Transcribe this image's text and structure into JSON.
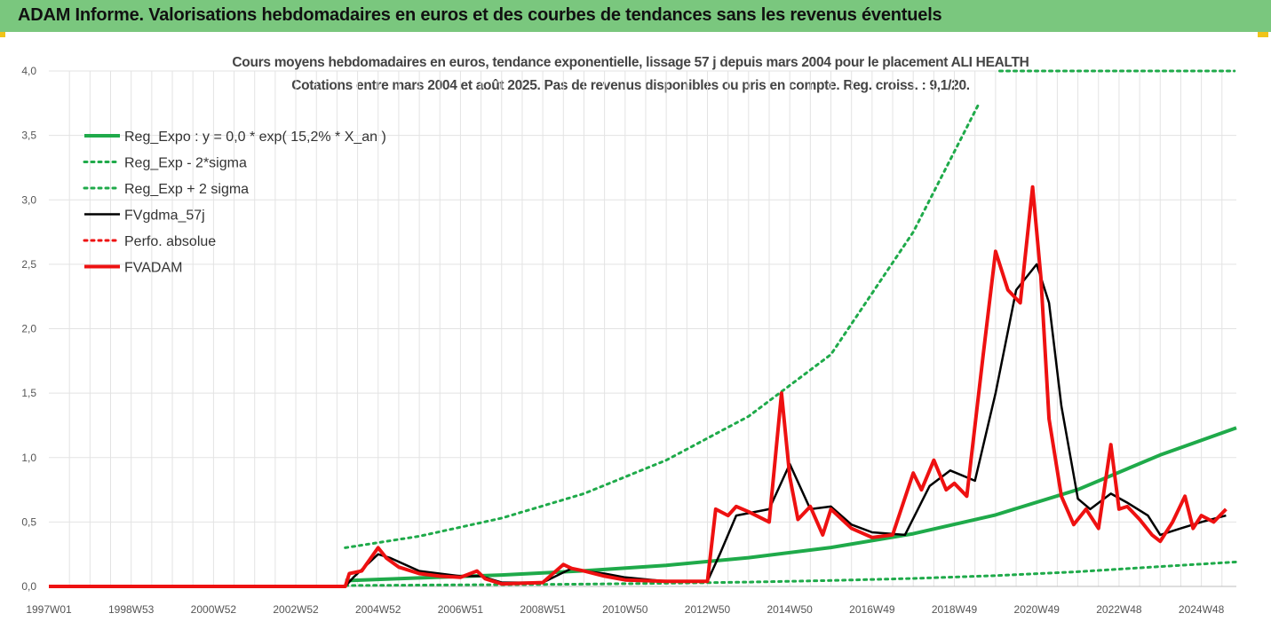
{
  "banner": {
    "title": "ADAM Informe. Valorisations hebdomadaires en euros et des courbes de tendances sans les revenus éventuels"
  },
  "colors": {
    "banner_bg": "#7ac77e",
    "accent_corner": "#f0c419",
    "reg_expo": "#1faa4a",
    "fvgdma": "#000000",
    "fvadam": "#ee1111",
    "grid": "#e3e3e3"
  },
  "chart_data": {
    "type": "line",
    "title": "Cours moyens hebdomadaires en euros, tendance exponentielle, lissage 57 j depuis mars 2004 pour le placement ALI HEALTH",
    "subtitle": "Cotations entre mars 2004 et août 2025.  Pas de revenus disponibles ou pris en compte. Reg. croiss. : 9,1/20.",
    "xlabel": "",
    "ylabel": "",
    "ylim": [
      0,
      4
    ],
    "yticks": [
      "0,0",
      "0,5",
      "1,0",
      "1,5",
      "2,0",
      "2,5",
      "3,0",
      "3,5",
      "4,0"
    ],
    "yvalues": [
      0,
      0.5,
      1,
      1.5,
      2,
      2.5,
      3,
      3.5,
      4
    ],
    "xticks": [
      "1997W01",
      "1998W53",
      "2000W52",
      "2002W52",
      "2004W52",
      "2006W51",
      "2008W51",
      "2010W50",
      "2012W50",
      "2014W50",
      "2016W49",
      "2018W49",
      "2020W49",
      "2022W48",
      "2024W48"
    ],
    "xtick_years": [
      1997.0,
      1999.0,
      2001.0,
      2003.0,
      2005.0,
      2007.0,
      2009.0,
      2011.0,
      2013.0,
      2015.0,
      2017.0,
      2019.0,
      2021.0,
      2023.0,
      2025.0
    ],
    "xlim": [
      1997.0,
      2025.85
    ],
    "grid": true,
    "legend_position": "top-left",
    "series": [
      {
        "name": "Reg_Expo : y = 0,0 * exp( 15,2% *  X_an )",
        "style": "solid-thick",
        "color": "#1faa4a",
        "x": [
          2004.2,
          2006,
          2008,
          2010,
          2012,
          2014,
          2016,
          2018,
          2020,
          2022,
          2024,
          2025.85
        ],
        "y": [
          0.045,
          0.066,
          0.089,
          0.121,
          0.164,
          0.223,
          0.302,
          0.409,
          0.555,
          0.752,
          1.02,
          1.23
        ]
      },
      {
        "name": "Reg_Exp - 2*sigma",
        "style": "dotted",
        "color": "#1faa4a",
        "x": [
          2004.2,
          2006,
          2008,
          2010,
          2012,
          2014,
          2016,
          2018,
          2020,
          2022,
          2024,
          2025.85
        ],
        "y": [
          0.007,
          0.01,
          0.014,
          0.018,
          0.025,
          0.034,
          0.046,
          0.062,
          0.084,
          0.114,
          0.154,
          0.19
        ]
      },
      {
        "name": "Reg_Exp + 2 sigma",
        "style": "dotted",
        "color": "#1faa4a",
        "x": [
          2004.2,
          2006,
          2008,
          2010,
          2012,
          2014,
          2016,
          2018,
          2019.6
        ],
        "y": [
          0.3,
          0.39,
          0.53,
          0.72,
          0.98,
          1.32,
          1.8,
          2.75,
          3.75
        ]
      },
      {
        "name": "FVgdma_57j",
        "style": "solid",
        "color": "#000000",
        "x": [
          1997,
          2004.2,
          2004.4,
          2005.0,
          2005.3,
          2006.0,
          2007.0,
          2007.5,
          2008.0,
          2009.0,
          2009.7,
          2010.0,
          2010.5,
          2011.0,
          2012.0,
          2013.0,
          2013.3,
          2013.7,
          2014.5,
          2015.0,
          2015.5,
          2016.0,
          2016.5,
          2017.0,
          2017.8,
          2018.4,
          2018.9,
          2019.5,
          2020.0,
          2020.5,
          2021.0,
          2021.3,
          2021.6,
          2022.0,
          2022.3,
          2022.8,
          2023.2,
          2023.7,
          2024.0,
          2024.5,
          2025.0,
          2025.6
        ],
        "y": [
          0,
          0,
          0.07,
          0.25,
          0.22,
          0.12,
          0.08,
          0.08,
          0.03,
          0.03,
          0.14,
          0.12,
          0.1,
          0.07,
          0.04,
          0.04,
          0.25,
          0.55,
          0.6,
          0.95,
          0.6,
          0.62,
          0.48,
          0.42,
          0.4,
          0.78,
          0.9,
          0.82,
          1.5,
          2.3,
          2.5,
          2.2,
          1.4,
          0.68,
          0.6,
          0.72,
          0.65,
          0.55,
          0.4,
          0.45,
          0.5,
          0.55
        ]
      },
      {
        "name": "Perfo. absolue",
        "style": "dotted",
        "color": "#ee1111",
        "x": [],
        "y": []
      },
      {
        "name": "FVADAM",
        "style": "solid-thick",
        "color": "#ee1111",
        "x": [
          1997,
          2004.2,
          2004.3,
          2004.6,
          2005.0,
          2005.2,
          2005.5,
          2006.0,
          2006.5,
          2007.0,
          2007.4,
          2007.6,
          2008.0,
          2009.0,
          2009.5,
          2009.7,
          2010.0,
          2010.5,
          2011.0,
          2012.0,
          2013.0,
          2013.2,
          2013.5,
          2013.7,
          2014.0,
          2014.5,
          2014.8,
          2015.0,
          2015.2,
          2015.5,
          2015.8,
          2016.0,
          2016.5,
          2017.0,
          2017.5,
          2018.0,
          2018.2,
          2018.5,
          2018.8,
          2019.0,
          2019.3,
          2019.7,
          2020.0,
          2020.3,
          2020.6,
          2020.9,
          2021.1,
          2021.3,
          2021.6,
          2021.9,
          2022.2,
          2022.5,
          2022.8,
          2023.0,
          2023.2,
          2023.5,
          2023.8,
          2024.0,
          2024.3,
          2024.6,
          2024.8,
          2025.0,
          2025.3,
          2025.6
        ],
        "y": [
          0,
          0,
          0.1,
          0.12,
          0.3,
          0.22,
          0.15,
          0.1,
          0.08,
          0.07,
          0.12,
          0.06,
          0.02,
          0.03,
          0.17,
          0.14,
          0.12,
          0.08,
          0.05,
          0.04,
          0.04,
          0.6,
          0.55,
          0.62,
          0.58,
          0.5,
          1.5,
          0.85,
          0.52,
          0.62,
          0.4,
          0.6,
          0.45,
          0.38,
          0.4,
          0.88,
          0.75,
          0.98,
          0.75,
          0.8,
          0.7,
          1.8,
          2.6,
          2.3,
          2.2,
          3.1,
          2.4,
          1.3,
          0.7,
          0.48,
          0.6,
          0.45,
          1.1,
          0.6,
          0.62,
          0.52,
          0.4,
          0.35,
          0.5,
          0.7,
          0.45,
          0.55,
          0.5,
          0.6
        ]
      }
    ]
  }
}
